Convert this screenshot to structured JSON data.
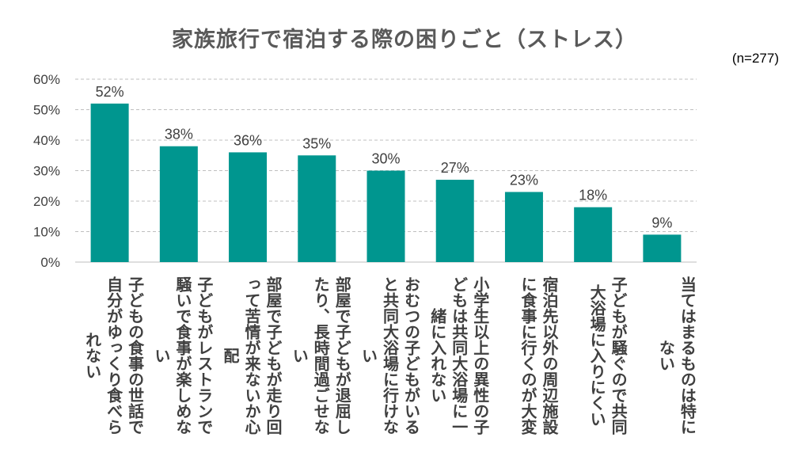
{
  "chart_data": {
    "type": "bar",
    "title": "家族旅行で宿泊する際の困りごと（ストレス）",
    "note": "(n=277)",
    "categories": [
      "子どもの食事の世話で自分がゆっくり食べられない",
      "子どもがレストランで騒いで食事が楽しめない",
      "部屋で子どもが走り回って苦情が来ないか心配",
      "部屋で子どもが退屈したり、長時間過ごせない",
      "おむつの子どもがいると共同大浴場に行けない",
      "小学生以上の異性の子どもは共同大浴場に一緒に入れない",
      "宿泊先以外の周辺施設に食事に行くのが大変",
      "子どもが騒ぐので共同大浴場に入りにくい",
      "当てはまるものは特にない"
    ],
    "values": [
      52,
      38,
      36,
      35,
      30,
      27,
      23,
      18,
      9
    ],
    "data_labels": [
      "52%",
      "38%",
      "36%",
      "35%",
      "30%",
      "27%",
      "23%",
      "18%",
      "9%"
    ],
    "yticks": [
      "0%",
      "10%",
      "20%",
      "30%",
      "40%",
      "50%",
      "60%"
    ],
    "ylim": [
      0,
      60
    ],
    "grid": true,
    "gridline_style": "dashed",
    "bar_color": "#00968F"
  }
}
